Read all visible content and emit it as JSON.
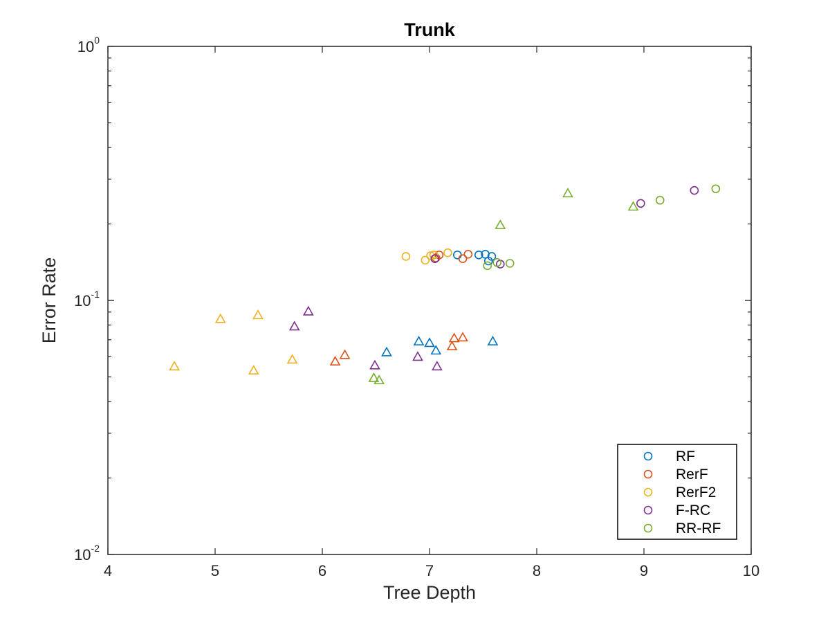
{
  "chart_data": {
    "type": "scatter",
    "title": "Trunk",
    "xlabel": "Tree Depth",
    "ylabel": "Error Rate",
    "xlim": [
      4,
      10
    ],
    "ylim": [
      0.01,
      1
    ],
    "y_scale": "log",
    "x_ticks": [
      "4",
      "5",
      "6",
      "7",
      "8",
      "9",
      "10"
    ],
    "y_ticks": [
      {
        "value": 1,
        "base": "10",
        "exp": "0"
      },
      {
        "value": 0.1,
        "base": "10",
        "exp": "-1"
      },
      {
        "value": 0.01,
        "base": "10",
        "exp": "-2"
      }
    ],
    "grid": false,
    "legend_position": "bottom-right",
    "series": [
      {
        "name": "RF",
        "color": "#0072BD",
        "circles": [
          [
            7.26,
            0.151
          ],
          [
            7.46,
            0.151
          ],
          [
            7.52,
            0.152
          ],
          [
            7.58,
            0.149
          ],
          [
            7.55,
            0.143
          ]
        ],
        "triangles": [
          [
            6.6,
            0.0625
          ],
          [
            6.9,
            0.069
          ],
          [
            7.0,
            0.068
          ],
          [
            7.06,
            0.0635
          ],
          [
            7.59,
            0.069
          ]
        ]
      },
      {
        "name": "RerF",
        "color": "#D95319",
        "circles": [
          [
            7.06,
            0.147
          ],
          [
            7.09,
            0.151
          ],
          [
            7.31,
            0.146
          ],
          [
            7.36,
            0.152
          ]
        ],
        "triangles": [
          [
            6.12,
            0.0575
          ],
          [
            6.21,
            0.061
          ],
          [
            7.21,
            0.066
          ],
          [
            7.23,
            0.071
          ],
          [
            7.31,
            0.0715
          ]
        ]
      },
      {
        "name": "RerF2",
        "color": "#EDB120",
        "circles": [
          [
            6.78,
            0.149
          ],
          [
            6.96,
            0.144
          ],
          [
            7.01,
            0.15
          ],
          [
            7.04,
            0.151
          ],
          [
            7.17,
            0.154
          ]
        ],
        "triangles": [
          [
            4.62,
            0.055
          ],
          [
            5.05,
            0.0845
          ],
          [
            5.36,
            0.053
          ],
          [
            5.4,
            0.0875
          ],
          [
            5.72,
            0.0585
          ]
        ]
      },
      {
        "name": "F-RC",
        "color": "#7E2F8E",
        "circles": [
          [
            7.05,
            0.146
          ],
          [
            7.66,
            0.139
          ],
          [
            8.97,
            0.241
          ],
          [
            9.47,
            0.271
          ]
        ],
        "triangles": [
          [
            5.74,
            0.079
          ],
          [
            5.87,
            0.0905
          ],
          [
            6.49,
            0.0555
          ],
          [
            6.89,
            0.06
          ],
          [
            7.07,
            0.055
          ]
        ]
      },
      {
        "name": "RR-RF",
        "color": "#77AC30",
        "circles": [
          [
            7.54,
            0.137
          ],
          [
            7.63,
            0.141
          ],
          [
            7.75,
            0.14
          ],
          [
            9.15,
            0.248
          ],
          [
            9.67,
            0.275
          ]
        ],
        "triangles": [
          [
            6.48,
            0.0495
          ],
          [
            6.53,
            0.0485
          ],
          [
            7.66,
            0.198
          ],
          [
            8.29,
            0.264
          ],
          [
            8.9,
            0.234
          ]
        ]
      }
    ]
  }
}
